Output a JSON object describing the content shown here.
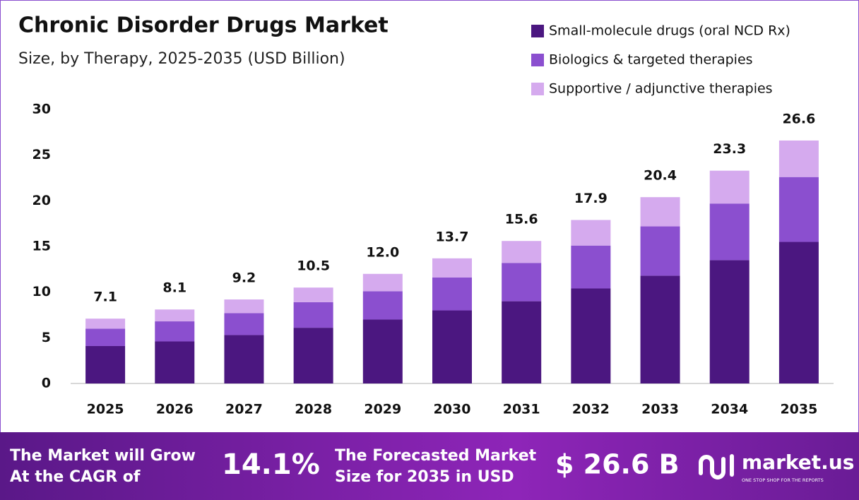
{
  "chart_data": {
    "type": "stacked-bar",
    "title": "Chronic Disorder Drugs Market",
    "subtitle": "Size, by Therapy, 2025-2035 (USD Billion)",
    "categories": [
      "2025",
      "2026",
      "2027",
      "2028",
      "2029",
      "2030",
      "2031",
      "2032",
      "2033",
      "2034",
      "2035"
    ],
    "series": [
      {
        "name": "Small-molecule drugs (oral NCD Rx)",
        "color": "#4b1780",
        "values": [
          4.1,
          4.6,
          5.3,
          6.1,
          7.0,
          8.0,
          9.0,
          10.4,
          11.8,
          13.5,
          15.5
        ]
      },
      {
        "name": "Biologics & targeted therapies",
        "color": "#8b4fcf",
        "values": [
          1.9,
          2.2,
          2.4,
          2.8,
          3.1,
          3.6,
          4.2,
          4.7,
          5.4,
          6.2,
          7.1
        ]
      },
      {
        "name": "Supportive / adjunctive therapies",
        "color": "#d5aaee",
        "values": [
          1.1,
          1.3,
          1.5,
          1.6,
          1.9,
          2.1,
          2.4,
          2.8,
          3.2,
          3.6,
          4.0
        ]
      }
    ],
    "totals": [
      7.1,
      8.1,
      9.2,
      10.5,
      12.0,
      13.7,
      15.6,
      17.9,
      20.4,
      23.3,
      26.6
    ],
    "totals_labels": [
      "7.1",
      "8.1",
      "9.2",
      "10.5",
      "12.0",
      "13.7",
      "15.6",
      "17.9",
      "20.4",
      "23.3",
      "26.6"
    ],
    "ylim": [
      0,
      30
    ],
    "yticks": [
      0,
      5,
      10,
      15,
      20,
      25,
      30
    ],
    "grid": false,
    "legend": "top-right"
  },
  "footer": {
    "cagr_label": [
      "The Market will Grow",
      "At the CAGR of"
    ],
    "cagr_value": "14.1%",
    "forecast_label": [
      "The Forecasted Market",
      "Size for 2035 in USD"
    ],
    "forecast_value": "$ 26.6 B",
    "brand": "market.us",
    "tagline": "ONE STOP SHOP FOR THE REPORTS"
  }
}
